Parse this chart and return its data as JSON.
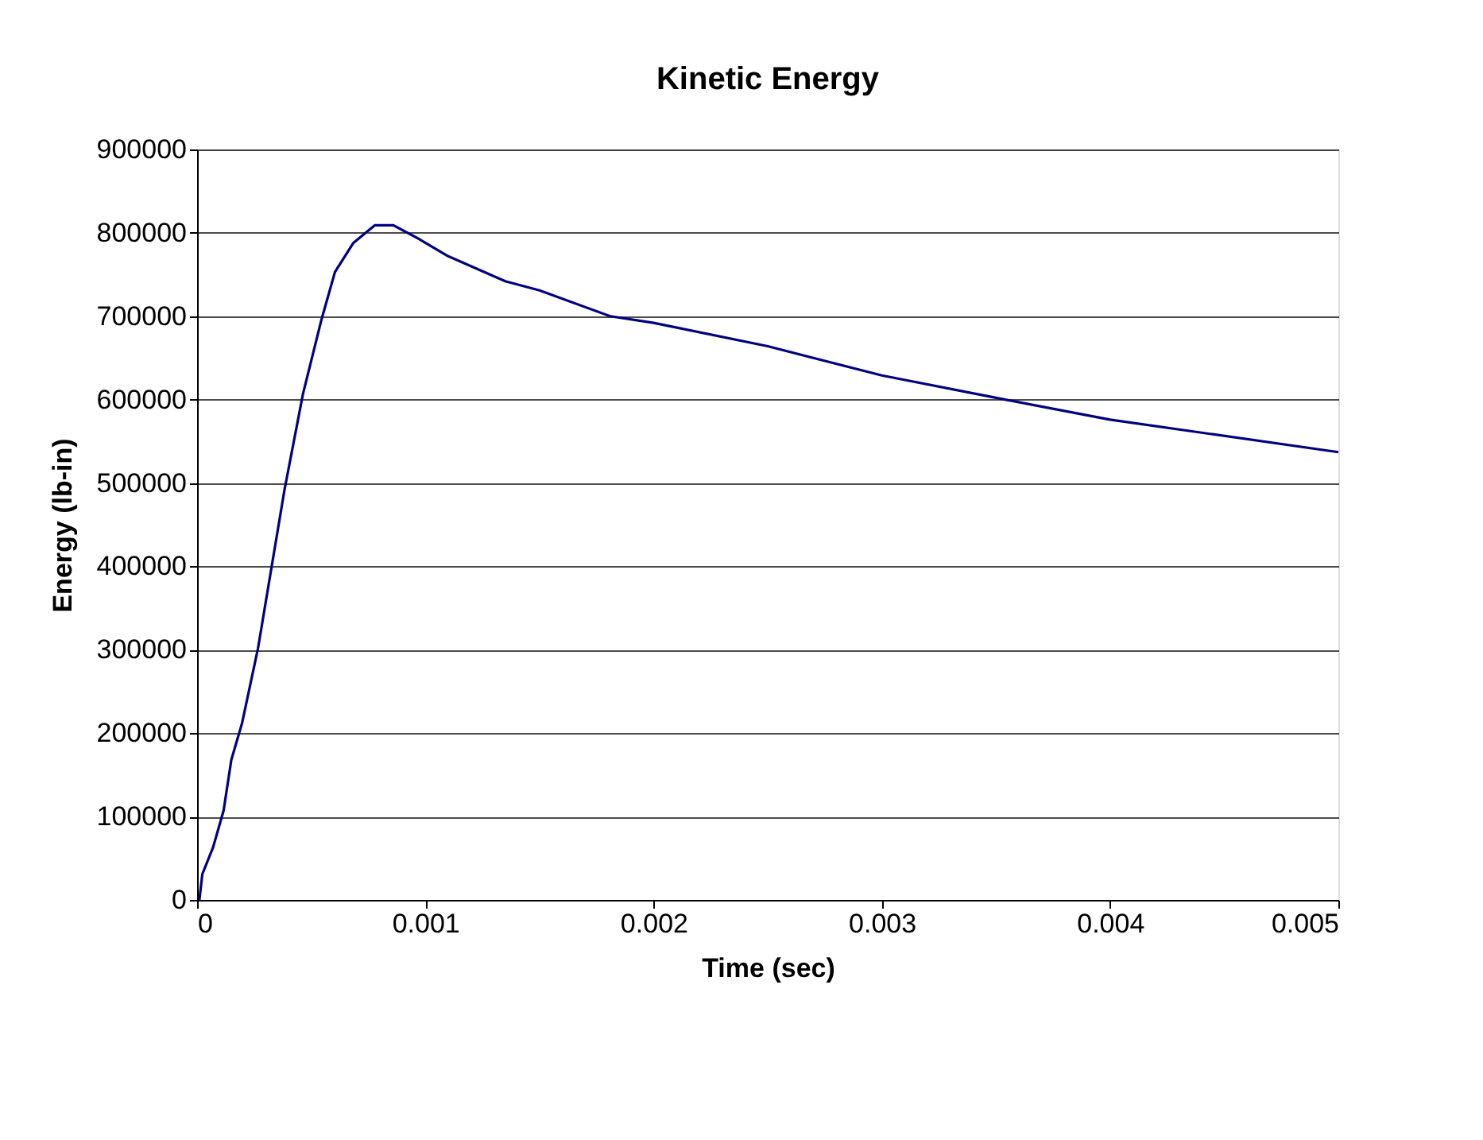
{
  "chart_data": {
    "type": "line",
    "title": "Kinetic Energy",
    "xlabel": "Time (sec)",
    "ylabel": "Energy (lb-in)",
    "x": [
      1e-05,
      2.3e-05,
      7e-05,
      0.000116,
      0.00015,
      0.000197,
      0.000267,
      0.000325,
      0.000383,
      0.000464,
      0.000545,
      0.000604,
      0.000685,
      0.000778,
      0.00086,
      0.000963,
      0.0011,
      0.00135,
      0.0015,
      0.00181,
      0.002,
      0.0025,
      0.003,
      0.00354,
      0.004,
      0.005
    ],
    "series": [
      {
        "color": "#000080",
        "values": [
          0,
          31000,
          63000,
          107000,
          168000,
          212000,
          302000,
          397000,
          492000,
          607000,
          696000,
          753000,
          788000,
          809000,
          809000,
          794000,
          772000,
          742000,
          731000,
          700000,
          692000,
          664000,
          629000,
          600000,
          576000,
          537000
        ]
      }
    ],
    "xlim": [
      0,
      0.005
    ],
    "xticks": [
      0,
      0.001,
      0.002,
      0.003,
      0.004,
      0.005
    ],
    "ylim": [
      0,
      900000
    ],
    "yticks": [
      0,
      100000,
      200000,
      300000,
      400000,
      500000,
      600000,
      700000,
      800000,
      900000
    ],
    "grid": "y",
    "legend": false,
    "marker": "none",
    "line_style": "solid"
  }
}
